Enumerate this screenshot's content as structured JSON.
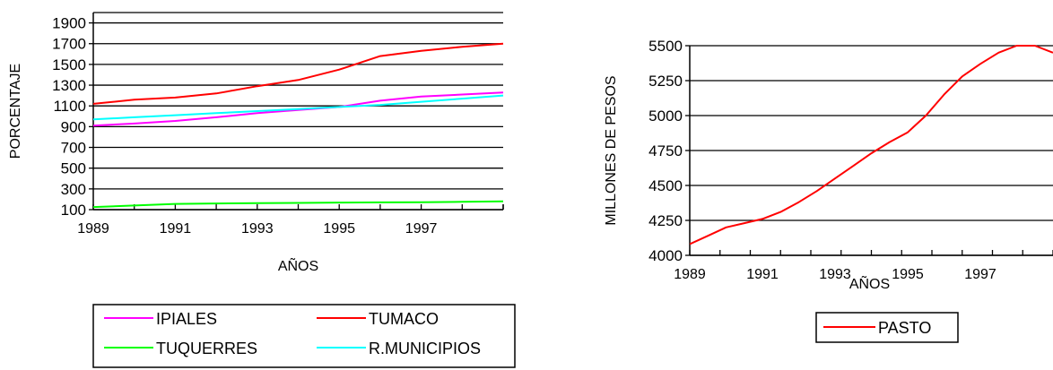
{
  "chart_data": [
    {
      "type": "line",
      "xlabel": "AÑOS",
      "ylabel": "PORCENTAJE",
      "xlim": [
        1989,
        1999
      ],
      "ylim": [
        100,
        2000
      ],
      "grid": true,
      "yticks": [
        "100",
        "300",
        "500",
        "700",
        "900",
        "1100",
        "1300",
        "1500",
        "1700",
        "1900"
      ],
      "xticks": [
        "1989",
        "1991",
        "1993",
        "1995",
        "1997"
      ],
      "legend_position": "bottom",
      "series": [
        {
          "name": "IPIALES",
          "color": "#ff00ff",
          "x": [
            1989,
            1990,
            1991,
            1992,
            1993,
            1994,
            1995,
            1996,
            1997,
            1998,
            1999
          ],
          "y": [
            910,
            930,
            955,
            990,
            1030,
            1060,
            1090,
            1150,
            1190,
            1210,
            1230
          ]
        },
        {
          "name": "TUMACO",
          "color": "#ff0000",
          "x": [
            1989,
            1990,
            1991,
            1992,
            1993,
            1994,
            1995,
            1996,
            1997,
            1998,
            1999
          ],
          "y": [
            1120,
            1160,
            1180,
            1220,
            1290,
            1350,
            1450,
            1580,
            1630,
            1670,
            1700
          ]
        },
        {
          "name": "TUQUERRES",
          "color": "#00ff00",
          "x": [
            1989,
            1990,
            1991,
            1992,
            1993,
            1994,
            1995,
            1996,
            1997,
            1998,
            1999
          ],
          "y": [
            125,
            140,
            155,
            160,
            163,
            165,
            168,
            170,
            172,
            175,
            180
          ]
        },
        {
          "name": "R.MUNICIPIOS",
          "color": "#00ffff",
          "x": [
            1989,
            1990,
            1991,
            1992,
            1993,
            1994,
            1995,
            1996,
            1997,
            1998,
            1999
          ],
          "y": [
            970,
            990,
            1010,
            1030,
            1050,
            1070,
            1090,
            1110,
            1140,
            1170,
            1200
          ]
        }
      ]
    },
    {
      "type": "line",
      "xlabel": "AÑOS",
      "ylabel": "MILLONES DE PESOS",
      "xlim": [
        1989,
        1999
      ],
      "ylim": [
        4000,
        5500
      ],
      "grid": true,
      "yticks": [
        "4000",
        "4250",
        "4500",
        "4750",
        "5000",
        "5250",
        "5500"
      ],
      "xticks": [
        "1989",
        "1991",
        "1993",
        "1995",
        "1997"
      ],
      "legend_position": "bottom",
      "series": [
        {
          "name": "PASTO",
          "color": "#ff0000",
          "x": [
            1989,
            1989.5,
            1990,
            1990.5,
            1991,
            1991.5,
            1992,
            1992.5,
            1993,
            1993.5,
            1994,
            1994.5,
            1995,
            1995.5,
            1996,
            1996.5,
            1997,
            1997.5,
            1998,
            1998.5,
            1999
          ],
          "y": [
            4080,
            4140,
            4200,
            4230,
            4260,
            4310,
            4380,
            4460,
            4550,
            4640,
            4730,
            4810,
            4880,
            5000,
            5150,
            5280,
            5370,
            5450,
            5500,
            5500,
            5450
          ]
        }
      ]
    }
  ]
}
